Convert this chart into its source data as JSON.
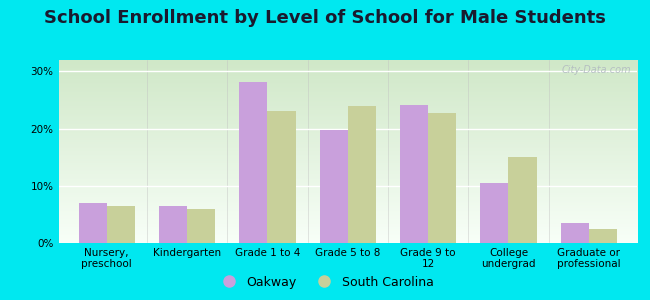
{
  "title": "School Enrollment by Level of School for Male Students",
  "categories": [
    "Nursery,\npreschool",
    "Kindergarten",
    "Grade 1 to 4",
    "Grade 5 to 8",
    "Grade 9 to\n12",
    "College\nundergrad",
    "Graduate or\nprofessional"
  ],
  "oakway": [
    7.0,
    6.5,
    28.2,
    19.8,
    24.2,
    10.5,
    3.5
  ],
  "south_carolina": [
    6.5,
    6.0,
    23.0,
    24.0,
    22.7,
    15.0,
    2.5
  ],
  "oakway_color": "#c9a0dc",
  "sc_color": "#c8d09a",
  "background_outer": "#00e8f0",
  "background_top": "#d0e8c8",
  "background_bottom": "#f8fff8",
  "yticks": [
    0,
    10,
    20,
    30
  ],
  "ylim": [
    0,
    32
  ],
  "bar_width": 0.35,
  "legend_labels": [
    "Oakway",
    "South Carolina"
  ],
  "watermark": "City-Data.com",
  "title_fontsize": 13,
  "tick_fontsize": 7.5,
  "legend_fontsize": 9
}
